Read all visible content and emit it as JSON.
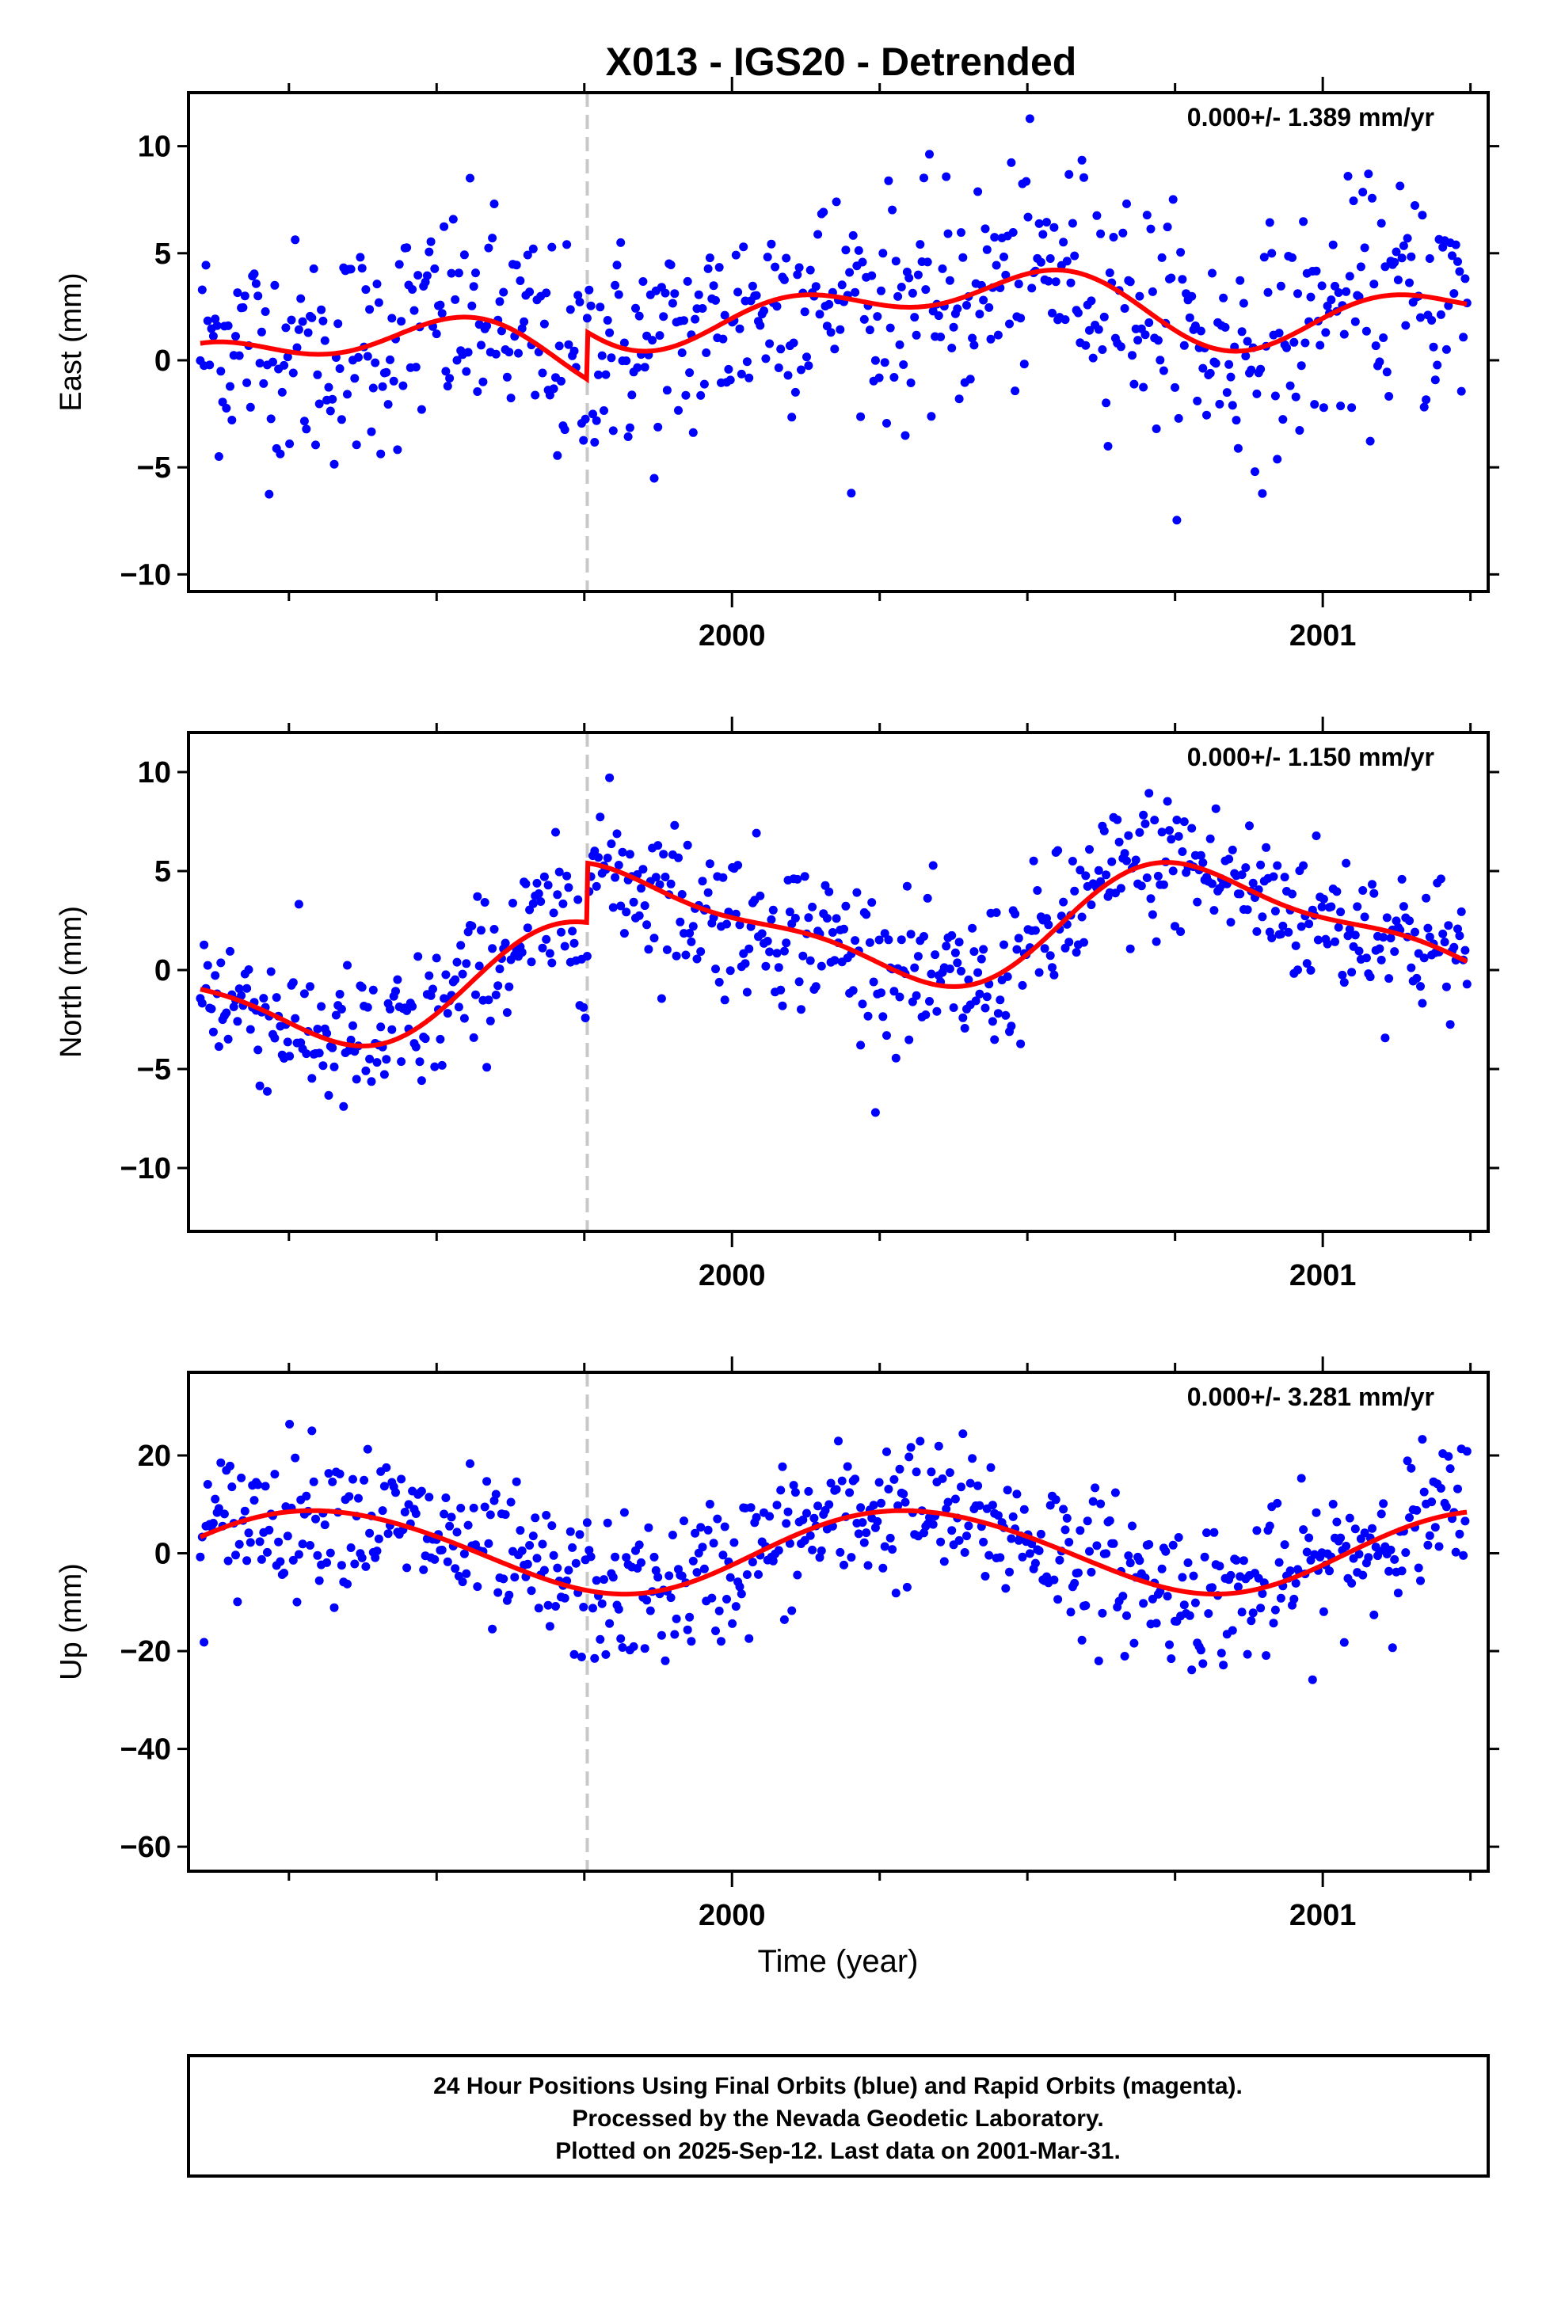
{
  "chart_data": {
    "type": "scatter",
    "title": "X013 - IGS20 - Detrended",
    "xlabel": "Time (year)",
    "xlim": [
      1999.08,
      2001.28
    ],
    "x_tick_labels": [
      "2000",
      "2001"
    ],
    "step_epoch": 1999.755,
    "series_colors": {
      "final_orbits": "#0000ff",
      "model_fit": "#ff0000",
      "step_line": "#c8c8c8"
    },
    "panels": [
      {
        "key": "east",
        "ylabel": "East (mm)",
        "ylim": [
          -10.8,
          12.5
        ],
        "yticks": [
          10,
          5,
          0,
          -5,
          -10
        ],
        "rate_label": "0.000+/- 1.389 mm/yr",
        "model": {
          "offset": 0.3,
          "annual_amp": 1.2,
          "annual_phase_deg": -60,
          "semi_amp": 1.0,
          "semi_phase_deg": 30,
          "step": 2.2
        },
        "scatter_sigma": 2.6
      },
      {
        "key": "north",
        "ylabel": "North (mm)",
        "ylim": [
          -13.2,
          12.0
        ],
        "yticks": [
          10,
          5,
          0,
          -5,
          -10
        ],
        "rate_label": "0.000+/- 1.150 mm/yr",
        "model": {
          "offset": -0.7,
          "annual_amp": 2.7,
          "annual_phase_deg": 160,
          "semi_amp": 0.9,
          "semi_phase_deg": -40,
          "step": 3.0
        },
        "scatter_sigma": 1.9
      },
      {
        "key": "up",
        "ylabel": "Up (mm)",
        "ylim": [
          -65,
          37
        ],
        "yticks": [
          20,
          0,
          -20,
          -40,
          -60
        ],
        "rate_label": "0.000+/- 3.281 mm/yr",
        "model": {
          "offset": 0.5,
          "annual_amp": 8.5,
          "annual_phase_deg": -20,
          "semi_amp": 0.5,
          "semi_phase_deg": 0,
          "step": 0
        },
        "scatter_sigma": 7.5
      }
    ]
  },
  "footer": {
    "line1": "24 Hour Positions Using Final Orbits (blue) and Rapid Orbits (magenta).",
    "line2": "Processed by the Nevada Geodetic Laboratory.",
    "line3": "Plotted on 2025-Sep-12. Last data on 2001-Mar-31."
  }
}
